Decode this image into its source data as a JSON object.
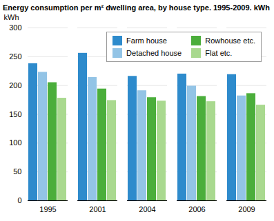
{
  "chart_data": {
    "type": "bar",
    "title": "Energy consumption per m² dwelling area, by house type. 1995-2009. kWh",
    "y_label": "kWh",
    "categories": [
      "1995",
      "2001",
      "2004",
      "2006",
      "2009"
    ],
    "series": [
      {
        "name": "Farm house",
        "color": "#2e8bcc",
        "values": [
          238,
          256,
          216,
          220,
          219
        ]
      },
      {
        "name": "Detached house",
        "color": "#93c4e6",
        "values": [
          223,
          214,
          191,
          199,
          182
        ]
      },
      {
        "name": "Rowhouse etc.",
        "color": "#4bae3b",
        "values": [
          205,
          194,
          179,
          181,
          186
        ]
      },
      {
        "name": "Flat etc.",
        "color": "#a9d98f",
        "values": [
          178,
          174,
          173,
          172,
          166
        ]
      }
    ],
    "ylim": [
      0,
      300
    ],
    "yticks": [
      0,
      50,
      100,
      150,
      200,
      250,
      300
    ],
    "grid": true,
    "legend": "top-right"
  }
}
